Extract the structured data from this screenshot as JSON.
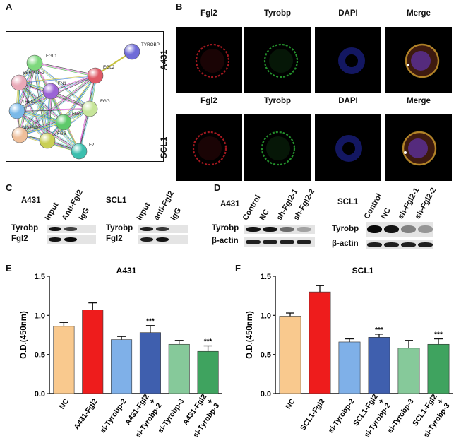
{
  "panels": {
    "A": "A",
    "B": "B",
    "C": "C",
    "D": "D",
    "E": "E",
    "F": "F"
  },
  "network": {
    "nodes": [
      {
        "id": "TYROBP",
        "color": "#6f6bd8"
      },
      {
        "id": "FGL1",
        "color": "#7dd87d"
      },
      {
        "id": "EGL2",
        "color": "#e05a66"
      },
      {
        "id": "SERPINF2",
        "color": "#e9a9b8"
      },
      {
        "id": "FN1",
        "color": "#9b63d6"
      },
      {
        "id": "FGG",
        "color": "#c7e59a"
      },
      {
        "id": "THBS1",
        "color": "#79b8e8"
      },
      {
        "id": "FGA",
        "color": "#5ec96a"
      },
      {
        "id": "MS4A6A",
        "color": "#efbf9a"
      },
      {
        "id": "FGB",
        "color": "#c9cf55"
      },
      {
        "id": "F2",
        "color": "#3cbfae"
      }
    ]
  },
  "microscopy": {
    "channels": [
      "Fgl2",
      "Tyrobp",
      "DAPI",
      "Merge"
    ],
    "rows": [
      "A431",
      "SCL1"
    ]
  },
  "coip": {
    "groups": [
      {
        "cell_line": "A431",
        "lanes": [
          "Input",
          "Anti-Fgl2",
          "IgG"
        ],
        "rows": [
          "Tyrobp",
          "Fgl2"
        ]
      },
      {
        "cell_line": "SCL1",
        "lanes": [
          "Input",
          "anti-Fgl2",
          "IgG"
        ],
        "rows": [
          "Tyrobp",
          "Fgl2"
        ]
      }
    ]
  },
  "western": {
    "groups": [
      {
        "cell_line": "A431",
        "lanes": [
          "Control",
          "NC",
          "sh-Fgl2-1",
          "sh-Fgl2-2"
        ],
        "rows": [
          "Tyrobp",
          "β-actin"
        ]
      },
      {
        "cell_line": "SCL1",
        "lanes": [
          "Control",
          "NC",
          "sh-Fgl2-1",
          "sh-Fgl2-2"
        ],
        "rows": [
          "Tyrobp",
          "β-actin"
        ]
      }
    ]
  },
  "chart_data": [
    {
      "type": "bar",
      "title": "A431",
      "ylabel": "O.D.(450nm)",
      "ylim": [
        0,
        1.5
      ],
      "yticks": [
        "0.0",
        "0.5",
        "1.0",
        "1.5"
      ],
      "categories": [
        "NC",
        "A431-Fgl2",
        "si-Tyrobp-2",
        "A431-Fgl2 + si-Tyrobp-2",
        "si-Tyrobp-3",
        "A431-Fgl2 + si-Tyrobp-3"
      ],
      "category_lines": [
        [
          "NC"
        ],
        [
          "A431-Fgl2"
        ],
        [
          "si-Tyrobp-2"
        ],
        [
          "A431-Fgl2",
          "+",
          "si-Tyrobp-2"
        ],
        [
          "si-Tyrobp-3"
        ],
        [
          "A431-Fgl2",
          "+",
          "si-Tyrobp-3"
        ]
      ],
      "values": [
        0.86,
        1.07,
        0.69,
        0.78,
        0.63,
        0.54
      ],
      "errors": [
        0.05,
        0.09,
        0.04,
        0.09,
        0.05,
        0.07
      ],
      "significance": [
        "",
        "",
        "",
        "***",
        "",
        "***"
      ],
      "colors": [
        "#f9c98e",
        "#ee1c1c",
        "#7fb0e8",
        "#3f5fae",
        "#86c99a",
        "#3fa35f"
      ]
    },
    {
      "type": "bar",
      "title": "SCL1",
      "ylabel": "O.D.(450nm)",
      "ylim": [
        0,
        1.5
      ],
      "yticks": [
        "0.0",
        "0.5",
        "1.0",
        "1.5"
      ],
      "categories": [
        "NC",
        "SCL1-Fgl2",
        "si-Tyrobp-2",
        "SCL1-Fgl2 + si-Tyrobp-2",
        "si-Tyrobp-3",
        "SCL1-Fgl2 + si-Tyrobp-3"
      ],
      "category_lines": [
        [
          "NC"
        ],
        [
          "SCL1-Fgl2"
        ],
        [
          "si-Tyrobp-2"
        ],
        [
          "SCL1-Fgl2",
          "+",
          "si-Tyrobp-2"
        ],
        [
          "si-Tyrobp-3"
        ],
        [
          "SCL1-Fgl2",
          "+",
          "si-Tyrobp-3"
        ]
      ],
      "values": [
        0.99,
        1.3,
        0.66,
        0.72,
        0.58,
        0.63
      ],
      "errors": [
        0.04,
        0.08,
        0.04,
        0.04,
        0.1,
        0.07
      ],
      "significance": [
        "",
        "",
        "",
        "***",
        "",
        "***"
      ],
      "colors": [
        "#f9c98e",
        "#ee1c1c",
        "#7fb0e8",
        "#3f5fae",
        "#86c99a",
        "#3fa35f"
      ]
    }
  ]
}
